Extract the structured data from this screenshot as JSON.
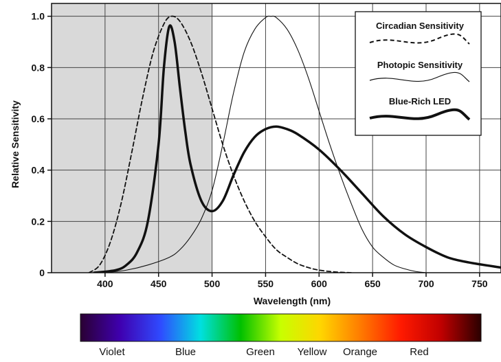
{
  "chart_data": {
    "type": "line",
    "xlabel": "Wavelength (nm)",
    "ylabel": "Relative Sensitivity",
    "xlim": [
      350,
      770
    ],
    "ylim": [
      0,
      1.05
    ],
    "x_ticks": [
      400,
      450,
      500,
      550,
      600,
      650,
      700,
      750
    ],
    "y_ticks": [
      0,
      0.2,
      0.4,
      0.6,
      0.8,
      1.0
    ],
    "x_tick_labels": [
      "400",
      "450",
      "500",
      "550",
      "600",
      "650",
      "700",
      "750"
    ],
    "y_tick_labels": [
      "0",
      "0.2",
      "0.4",
      "0.6",
      "0.8",
      "1.0"
    ],
    "grid": true,
    "shaded_region": {
      "x_from": 350,
      "x_to": 500,
      "color": "#d9d9d9"
    },
    "legend_position": "top-right",
    "series": [
      {
        "name": "Circadian Sensitivity",
        "style": "dashed",
        "color": "#111111",
        "x": [
          385,
          395,
          405,
          415,
          425,
          435,
          445,
          455,
          462,
          470,
          480,
          490,
          500,
          510,
          520,
          530,
          540,
          550,
          560,
          570,
          580,
          590,
          600,
          615,
          630
        ],
        "y": [
          0.0,
          0.03,
          0.12,
          0.27,
          0.47,
          0.68,
          0.86,
          0.97,
          1.0,
          0.98,
          0.9,
          0.78,
          0.64,
          0.5,
          0.38,
          0.28,
          0.2,
          0.14,
          0.09,
          0.06,
          0.035,
          0.02,
          0.01,
          0.003,
          0.0
        ]
      },
      {
        "name": "Photopic Sensitivity",
        "style": "thin",
        "color": "#111111",
        "x": [
          400,
          420,
          440,
          460,
          470,
          480,
          490,
          500,
          510,
          520,
          530,
          540,
          550,
          555,
          560,
          570,
          580,
          590,
          600,
          610,
          620,
          630,
          640,
          650,
          660,
          670,
          680,
          690,
          700
        ],
        "y": [
          0.0,
          0.01,
          0.03,
          0.06,
          0.09,
          0.14,
          0.21,
          0.32,
          0.5,
          0.7,
          0.86,
          0.95,
          0.995,
          1.0,
          0.995,
          0.95,
          0.87,
          0.76,
          0.63,
          0.5,
          0.38,
          0.27,
          0.17,
          0.1,
          0.06,
          0.03,
          0.015,
          0.005,
          0.0
        ]
      },
      {
        "name": "Blue-Rich LED",
        "style": "thick",
        "color": "#111111",
        "x": [
          390,
          410,
          420,
          430,
          440,
          450,
          455,
          460,
          465,
          470,
          475,
          480,
          490,
          500,
          510,
          520,
          530,
          540,
          550,
          560,
          570,
          580,
          600,
          620,
          640,
          660,
          680,
          700,
          720,
          740,
          770
        ],
        "y": [
          0.0,
          0.01,
          0.03,
          0.08,
          0.2,
          0.5,
          0.8,
          0.96,
          0.9,
          0.72,
          0.55,
          0.42,
          0.28,
          0.24,
          0.28,
          0.38,
          0.47,
          0.53,
          0.56,
          0.57,
          0.56,
          0.54,
          0.48,
          0.4,
          0.31,
          0.22,
          0.15,
          0.1,
          0.06,
          0.04,
          0.02
        ]
      }
    ],
    "spectrum_bar": {
      "labels": [
        "Violet",
        "Blue",
        "Green",
        "Yellow",
        "Orange",
        "Red"
      ],
      "colors": [
        "#2a0033",
        "#3f00b0",
        "#2f4bff",
        "#00e0e0",
        "#00c000",
        "#c8ff00",
        "#ffd500",
        "#ff7a00",
        "#ff1a00",
        "#c00000",
        "#2a0000"
      ]
    }
  }
}
